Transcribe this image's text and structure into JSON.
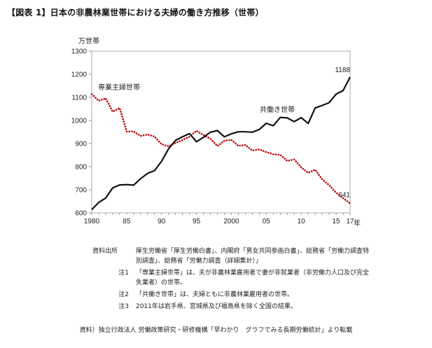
{
  "figure_title": "【図表 1】日本の非農林業世帯における夫婦の働き方推移（世帯）",
  "chart_data": {
    "type": "line",
    "unit_label": "万世帯",
    "x_unit_label": "年",
    "ylim": [
      600,
      1300
    ],
    "yticks": [
      "600",
      "700",
      "800",
      "900",
      "1000",
      "1100",
      "1200",
      "1300"
    ],
    "xlim": [
      1980,
      2017
    ],
    "xticks": [
      {
        "year": 1980,
        "label": "1980"
      },
      {
        "year": 1985,
        "label": "85"
      },
      {
        "year": 1990,
        "label": "90"
      },
      {
        "year": 1995,
        "label": "95"
      },
      {
        "year": 2000,
        "label": "2000"
      },
      {
        "year": 2005,
        "label": "05"
      },
      {
        "year": 2010,
        "label": "10"
      },
      {
        "year": 2015,
        "label": "15"
      },
      {
        "year": 2017,
        "label": "17"
      }
    ],
    "x": [
      1980,
      1981,
      1982,
      1983,
      1984,
      1985,
      1986,
      1987,
      1988,
      1989,
      1990,
      1991,
      1992,
      1993,
      1994,
      1995,
      1996,
      1997,
      1998,
      1999,
      2000,
      2001,
      2002,
      2003,
      2004,
      2005,
      2006,
      2007,
      2008,
      2009,
      2010,
      2011,
      2012,
      2013,
      2014,
      2015,
      2016,
      2017
    ],
    "series": [
      {
        "name": "専業主婦世帯",
        "color": "#c00000",
        "dashed": true,
        "values": [
          1114,
          1085,
          1096,
          1038,
          1054,
          952,
          952,
          933,
          939,
          930,
          897,
          888,
          903,
          915,
          930,
          955,
          937,
          921,
          889,
          912,
          916,
          890,
          894,
          870,
          875,
          863,
          854,
          851,
          825,
          831,
          797,
          773,
          787,
          745,
          720,
          687,
          664,
          641
        ],
        "end_label": "641"
      },
      {
        "name": "共働き世帯",
        "color": "#111111",
        "dashed": false,
        "values": [
          614,
          645,
          664,
          708,
          721,
          722,
          720,
          748,
          771,
          783,
          823,
          877,
          914,
          929,
          943,
          908,
          927,
          949,
          956,
          929,
          942,
          951,
          951,
          949,
          961,
          988,
          977,
          1013,
          1011,
          995,
          1012,
          987,
          1054,
          1065,
          1077,
          1114,
          1129,
          1188
        ],
        "end_label": "1188"
      }
    ]
  },
  "notes": [
    {
      "key": "資料出所",
      "text": "厚生労働省「厚生労働白書」、内閣府「男女共同参画白書」、総務省「労働力調査特別調査」、総務省「労働力調査（詳細集計）」"
    },
    {
      "key": "注1",
      "text": "「専業主婦世帯」は、夫が非農林業雇用者で妻が非就業者（非労働力人口及び完全失業者）の世帯。"
    },
    {
      "key": "注2",
      "text": "「共働き世帯」は、夫婦ともに非農林業雇用者の世帯。"
    },
    {
      "key": "注3",
      "text": "2011年は岩手県、宮城県及び福島県を除く全国の結果。"
    }
  ],
  "source": "資料）独立行政法人 労働政策研究・研修機構「早わかり　グラフでみる長期労働統計」より転載"
}
